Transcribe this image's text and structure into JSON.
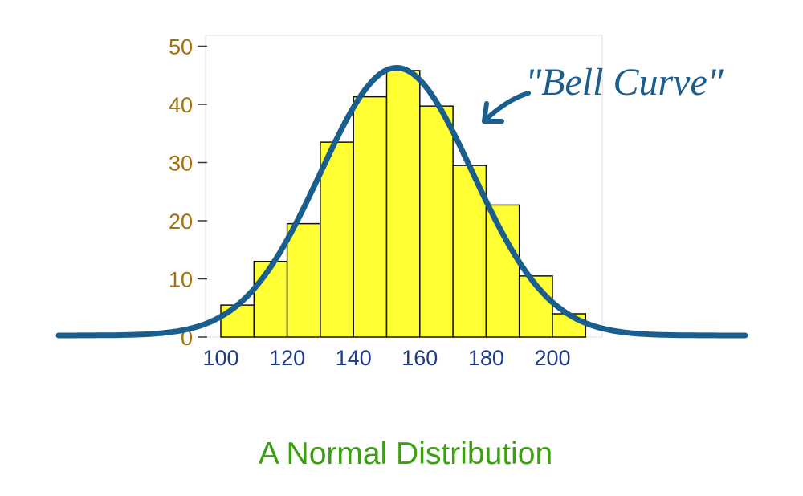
{
  "chart_data": {
    "type": "bar",
    "subtitle": "A Normal Distribution",
    "annotation": "\"Bell Curve\"",
    "bin_width": 10,
    "bins": [
      {
        "x": 100,
        "value": 5.5
      },
      {
        "x": 110,
        "value": 13
      },
      {
        "x": 120,
        "value": 19.5
      },
      {
        "x": 130,
        "value": 33.5
      },
      {
        "x": 140,
        "value": 41.3
      },
      {
        "x": 150,
        "value": 45.8
      },
      {
        "x": 160,
        "value": 39.7
      },
      {
        "x": 170,
        "value": 29.5
      },
      {
        "x": 180,
        "value": 22.7
      },
      {
        "x": 190,
        "value": 10.5
      },
      {
        "x": 200,
        "value": 4
      }
    ],
    "curve": {
      "mean": 153,
      "sd": 23,
      "peak": 46
    },
    "xticks": [
      100,
      120,
      140,
      160,
      180,
      200
    ],
    "yticks": [
      0,
      10,
      20,
      30,
      40,
      50
    ],
    "ylim": [
      0,
      50
    ],
    "grid": false,
    "colors": {
      "bar_fill": "#ffff33",
      "bar_stroke": "#111111",
      "curve": "#1a5e8e",
      "ytick_label": "#a0700a",
      "xtick_label": "#1f3b8f",
      "annotation": "#1a5e8e",
      "caption": "#3aa010"
    }
  }
}
